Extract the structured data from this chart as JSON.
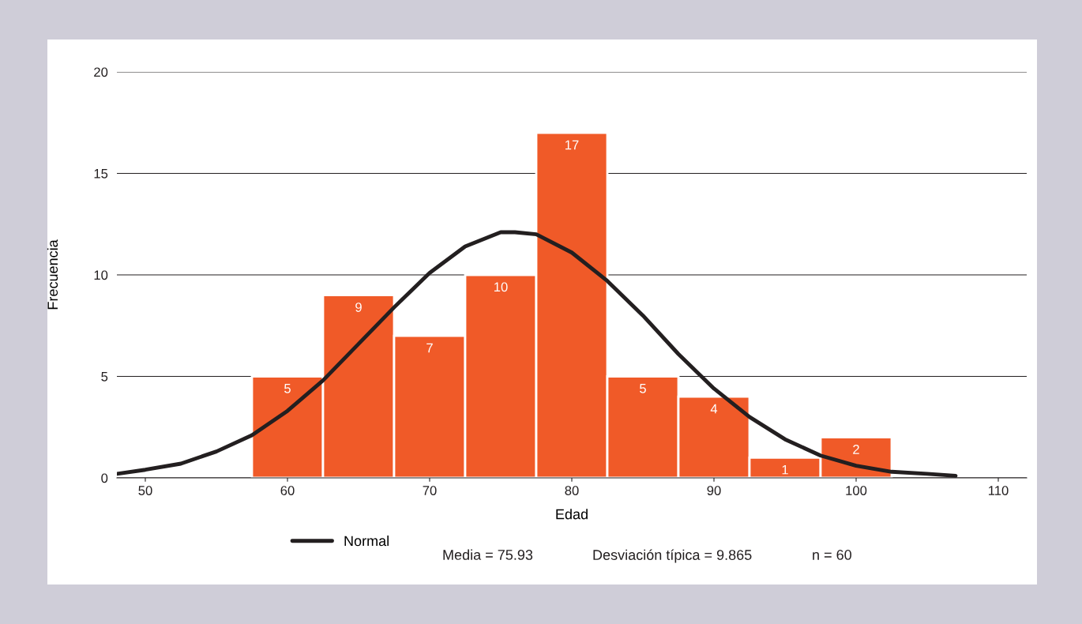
{
  "chart_data": {
    "type": "histogram",
    "xlabel": "Edad",
    "ylabel": "Frecuencia",
    "bins": [
      57.5,
      62.5,
      67.5,
      72.5,
      77.5,
      82.5,
      87.5,
      92.5,
      97.5,
      102.5
    ],
    "values": [
      5,
      9,
      7,
      10,
      17,
      5,
      4,
      1,
      2
    ],
    "color": "#f05a28",
    "value_labels": [
      "5",
      "9",
      "7",
      "10",
      "17",
      "5",
      "4",
      "1",
      "2"
    ],
    "series": [
      {
        "name": "Normal",
        "type": "line",
        "color": "#231f20",
        "x": [
          48,
          50,
          52.5,
          55,
          57.5,
          60,
          62.5,
          65,
          67.5,
          70,
          72.5,
          75,
          76,
          77.5,
          80,
          82.5,
          85,
          87.5,
          90,
          92.5,
          95,
          97.5,
          100,
          102.5,
          105,
          107
        ],
        "values": [
          0.2,
          0.4,
          0.7,
          1.3,
          2.1,
          3.3,
          4.8,
          6.6,
          8.4,
          10.1,
          11.4,
          12.1,
          12.1,
          12.0,
          11.1,
          9.7,
          8.0,
          6.1,
          4.4,
          3.0,
          1.9,
          1.1,
          0.6,
          0.3,
          0.2,
          0.1
        ]
      }
    ],
    "xlim": [
      48,
      112
    ],
    "xticks": [
      50,
      60,
      70,
      80,
      90,
      100,
      110
    ],
    "ylim": [
      0,
      20
    ],
    "yticks": [
      0,
      5,
      10,
      15,
      20
    ],
    "grid": "y",
    "legend": "bottom",
    "annotations": [
      "Media = 75.93",
      "Desviación típica = 9.865",
      "n = 60"
    ]
  }
}
